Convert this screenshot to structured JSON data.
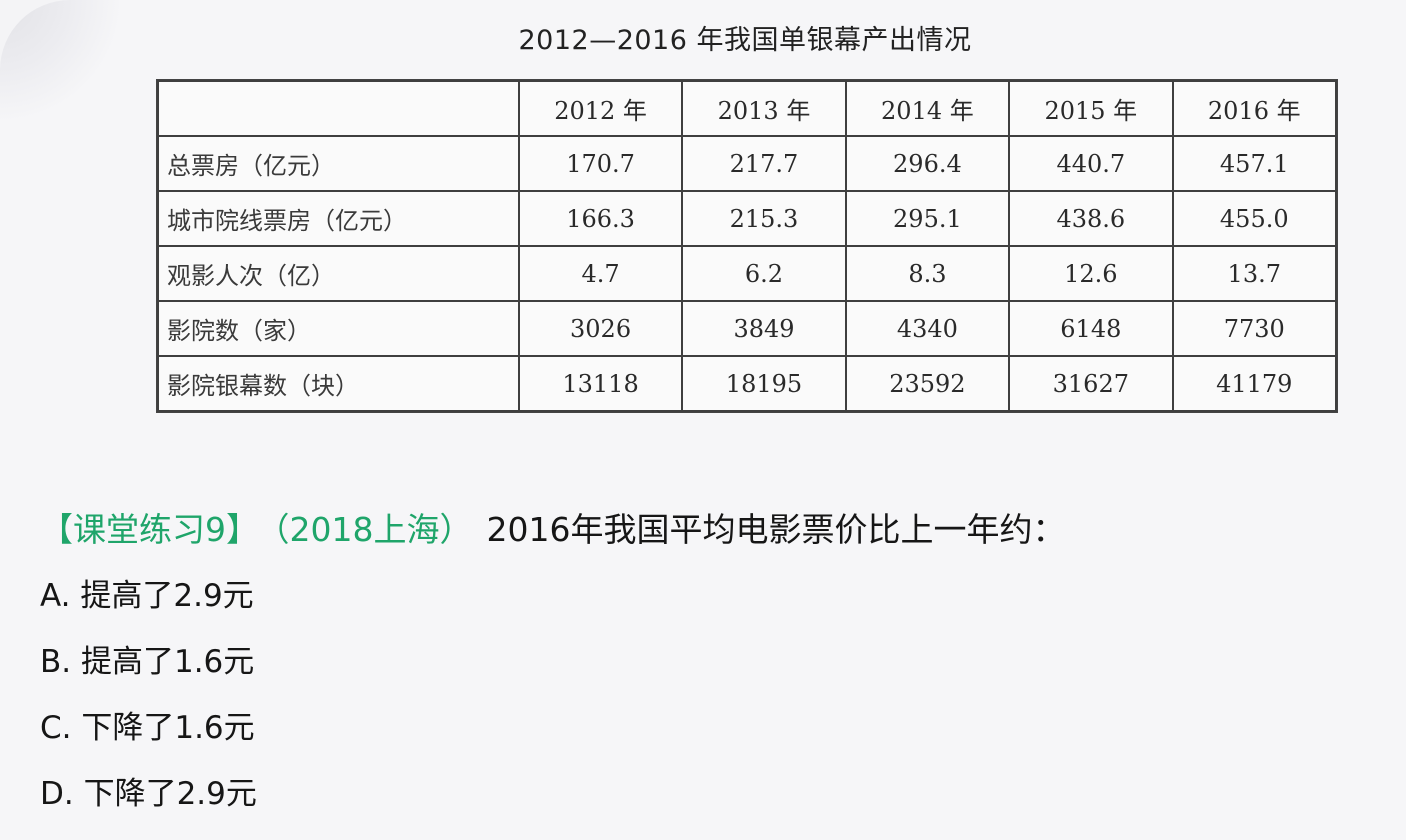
{
  "table": {
    "title": "2012—2016 年我国单银幕产出情况",
    "columns": [
      "2012 年",
      "2013 年",
      "2014 年",
      "2015 年",
      "2016 年"
    ],
    "rows": [
      {
        "label": "总票房（亿元）",
        "values": [
          "170.7",
          "217.7",
          "296.4",
          "440.7",
          "457.1"
        ]
      },
      {
        "label": "城市院线票房（亿元）",
        "values": [
          "166.3",
          "215.3",
          "295.1",
          "438.6",
          "455.0"
        ]
      },
      {
        "label": "观影人次（亿）",
        "values": [
          "4.7",
          "6.2",
          "8.3",
          "12.6",
          "13.7"
        ]
      },
      {
        "label": "影院数（家）",
        "values": [
          "3026",
          "3849",
          "4340",
          "6148",
          "7730"
        ]
      },
      {
        "label": "影院银幕数（块）",
        "values": [
          "13118",
          "18195",
          "23592",
          "31627",
          "41179"
        ]
      }
    ]
  },
  "question": {
    "tag": "【课堂练习9】",
    "source": "（2018上海）",
    "text": "2016年我国平均电影票价比上一年约："
  },
  "options": [
    "A. 提高了2.9元",
    "B. 提高了1.6元",
    "C. 下降了1.6元",
    "D. 下降了2.9元"
  ],
  "colors": {
    "accent": "#1fa56a",
    "text": "#161616",
    "background": "#f6f6f8"
  }
}
